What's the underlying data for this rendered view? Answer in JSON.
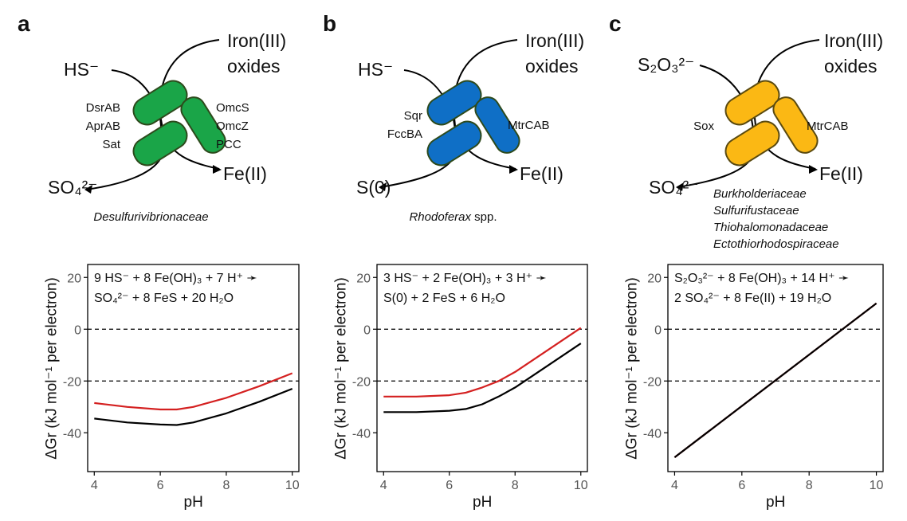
{
  "panels": [
    {
      "letter": "a",
      "donor": "HS⁻",
      "acceptor_top": "Iron(III)",
      "acceptor_bottom": "oxides",
      "product_s": "SO₄²⁻",
      "product_fe": "Fe(II)",
      "left_proteins": [
        "DsrAB",
        "AprAB",
        "Sat"
      ],
      "right_proteins": [
        "OmcS",
        "OmcZ",
        "PCC"
      ],
      "organisms": [
        "Desulfurivibrionaceae"
      ],
      "organism_suffix": "",
      "equation_line1": "9 HS⁻ + 8 Fe(OH)₃ + 7 H⁺ ➛",
      "equation_line2": "SO₄²⁻ + 8 FeS + 20 H₂O",
      "color": "#1aa548"
    },
    {
      "letter": "b",
      "donor": "HS⁻",
      "acceptor_top": "Iron(III)",
      "acceptor_bottom": "oxides",
      "product_s": "S(0)",
      "product_fe": "Fe(II)",
      "left_proteins": [
        "Sqr",
        "FccBA"
      ],
      "right_proteins": [
        "MtrCAB"
      ],
      "organisms": [
        "Rhodoferax"
      ],
      "organism_suffix": " spp.",
      "equation_line1": "3 HS⁻ + 2 Fe(OH)₃ + 3 H⁺ ➛",
      "equation_line2": "S(0) + 2 FeS + 6 H₂O",
      "color": "#0f6fc6"
    },
    {
      "letter": "c",
      "donor": "S₂O₃²⁻",
      "acceptor_top": "Iron(III)",
      "acceptor_bottom": "oxides",
      "product_s": "SO₄²⁻",
      "product_fe": "Fe(II)",
      "left_proteins": [
        "Sox"
      ],
      "right_proteins": [
        "MtrCAB"
      ],
      "organisms": [
        "Burkholderiaceae",
        "Sulfurifustaceae",
        "Thiohalomonadaceae",
        "Ectothiorhodospiraceae"
      ],
      "organism_suffix": "",
      "equation_line1": "S₂O₃²⁻ + 8 Fe(OH)₃ + 14 H⁺ ➛",
      "equation_line2": "2 SO₄²⁻ + 8 Fe(II) + 19 H₂O",
      "color": "#fbb814"
    }
  ],
  "colors": {
    "series_red": "#d42020",
    "series_black": "#000000",
    "stroke": "#3a5a1a"
  },
  "chart_data": [
    {
      "type": "line",
      "xlabel": "pH",
      "ylabel": "ΔGr (kJ mol⁻¹ per electron)",
      "xlim": [
        3.8,
        10.2
      ],
      "ylim": [
        -55,
        25
      ],
      "xticks": [
        4,
        6,
        8,
        10
      ],
      "yticks": [
        20,
        0,
        -20,
        -40
      ],
      "reference_lines": [
        0,
        -20
      ],
      "series": [
        {
          "color": "#d42020",
          "x": [
            4,
            5,
            6,
            6.5,
            7,
            8,
            9,
            10
          ],
          "y": [
            -28.5,
            -30,
            -31,
            -31,
            -30,
            -26.5,
            -22,
            -17
          ]
        },
        {
          "color": "#000000",
          "x": [
            4,
            5,
            6,
            6.5,
            7,
            8,
            9,
            10
          ],
          "y": [
            -34.5,
            -36,
            -36.8,
            -37,
            -36,
            -32.5,
            -28,
            -23
          ]
        }
      ]
    },
    {
      "type": "line",
      "xlabel": "pH",
      "ylabel": "ΔGr (kJ mol⁻¹ per electron)",
      "xlim": [
        3.8,
        10.2
      ],
      "ylim": [
        -55,
        25
      ],
      "xticks": [
        4,
        6,
        8,
        10
      ],
      "yticks": [
        20,
        0,
        -20,
        -40
      ],
      "reference_lines": [
        0,
        -20
      ],
      "series": [
        {
          "color": "#d42020",
          "x": [
            4,
            5,
            6,
            6.5,
            7,
            7.5,
            8,
            9,
            10
          ],
          "y": [
            -26,
            -26,
            -25.5,
            -24.5,
            -22.5,
            -20,
            -16.5,
            -8,
            0.5
          ]
        },
        {
          "color": "#000000",
          "x": [
            4,
            5,
            6,
            6.5,
            7,
            7.5,
            8,
            9,
            10
          ],
          "y": [
            -32,
            -32,
            -31.5,
            -30.8,
            -29,
            -26,
            -22.5,
            -14,
            -5.5
          ]
        }
      ]
    },
    {
      "type": "line",
      "xlabel": "pH",
      "ylabel": "ΔGr (kJ mol⁻¹ per electron)",
      "xlim": [
        3.8,
        10.2
      ],
      "ylim": [
        -55,
        25
      ],
      "xticks": [
        4,
        6,
        8,
        10
      ],
      "yticks": [
        20,
        0,
        -20,
        -40
      ],
      "reference_lines": [
        0,
        -20
      ],
      "series": [
        {
          "color": "#d42020",
          "x": [
            4,
            10
          ],
          "y": [
            -49.5,
            10
          ]
        },
        {
          "color": "#000000",
          "x": [
            4,
            10
          ],
          "y": [
            -49.5,
            10
          ]
        }
      ]
    }
  ]
}
